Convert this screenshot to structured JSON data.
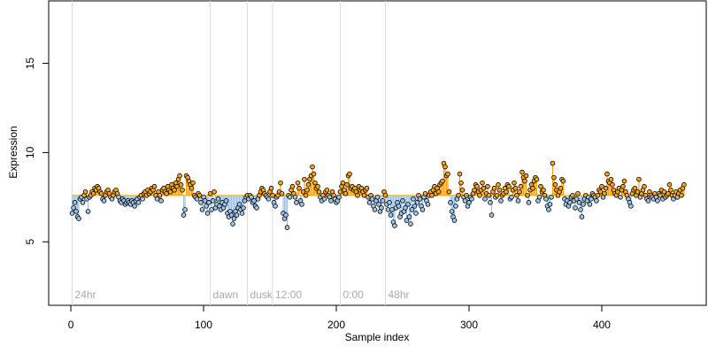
{
  "chart_data": {
    "type": "stem-scatter",
    "xlabel": "Sample index",
    "ylabel": "Expression",
    "xlim": [
      -16.7,
      478.7
    ],
    "ylim": [
      1.44,
      18.5
    ],
    "xticks": [
      0,
      100,
      200,
      300,
      400
    ],
    "yticks": [
      5,
      10,
      15
    ],
    "baseline": 7.6,
    "above_color": "#FFA500",
    "below_color": "#9CC3EA",
    "marker_line_color": "#dddddd",
    "markers": [
      {
        "label": "24hr",
        "x": 1
      },
      {
        "label": "dawn",
        "x": 105
      },
      {
        "label": "dusk",
        "x": 133
      },
      {
        "label": "12:00",
        "x": 152
      },
      {
        "label": "0:00",
        "x": 203
      },
      {
        "label": "48hr",
        "x": 237
      }
    ],
    "x": [
      1,
      2,
      3,
      4,
      5,
      6,
      7,
      8,
      9,
      10,
      11,
      12,
      13,
      14,
      15,
      16,
      17,
      18,
      19,
      20,
      21,
      22,
      23,
      24,
      25,
      26,
      27,
      28,
      29,
      30,
      31,
      32,
      33,
      34,
      35,
      36,
      37,
      38,
      39,
      40,
      41,
      42,
      43,
      44,
      45,
      46,
      47,
      48,
      49,
      50,
      51,
      52,
      53,
      54,
      55,
      56,
      57,
      58,
      59,
      60,
      61,
      62,
      63,
      64,
      65,
      66,
      67,
      68,
      69,
      70,
      71,
      72,
      73,
      74,
      75,
      76,
      77,
      78,
      79,
      80,
      81,
      82,
      83,
      84,
      85,
      86,
      87,
      88,
      89,
      90,
      91,
      92,
      93,
      94,
      95,
      96,
      97,
      98,
      99,
      100,
      101,
      102,
      103,
      104,
      105,
      106,
      107,
      108,
      109,
      110,
      111,
      112,
      113,
      114,
      115,
      116,
      117,
      118,
      119,
      120,
      121,
      122,
      123,
      124,
      125,
      126,
      127,
      128,
      129,
      130,
      131,
      132,
      133,
      134,
      135,
      136,
      137,
      138,
      139,
      140,
      141,
      142,
      143,
      144,
      145,
      146,
      147,
      148,
      149,
      150,
      151,
      152,
      153,
      154,
      155,
      156,
      157,
      158,
      159,
      160,
      161,
      162,
      163,
      164,
      165,
      166,
      167,
      168,
      169,
      170,
      171,
      172,
      173,
      174,
      175,
      176,
      177,
      178,
      179,
      180,
      181,
      182,
      183,
      184,
      185,
      186,
      187,
      188,
      189,
      190,
      191,
      192,
      193,
      194,
      195,
      196,
      197,
      198,
      199,
      200,
      201,
      202,
      203,
      204,
      205,
      206,
      207,
      208,
      209,
      210,
      211,
      212,
      213,
      214,
      215,
      216,
      217,
      218,
      219,
      220,
      221,
      222,
      223,
      224,
      225,
      226,
      227,
      228,
      229,
      230,
      231,
      232,
      233,
      234,
      235,
      236,
      237,
      238,
      239,
      240,
      241,
      242,
      243,
      244,
      245,
      246,
      247,
      248,
      249,
      250,
      251,
      252,
      253,
      254,
      255,
      256,
      257,
      258,
      259,
      260,
      261,
      262,
      263,
      264,
      265,
      266,
      267,
      268,
      269,
      270,
      271,
      272,
      273,
      274,
      275,
      276,
      277,
      278,
      279,
      280,
      281,
      282,
      283,
      284,
      285,
      286,
      287,
      288,
      289,
      290,
      291,
      292,
      293,
      294,
      295,
      296,
      297,
      298,
      299,
      300,
      301,
      302,
      303,
      304,
      305,
      306,
      307,
      308,
      309,
      310,
      311,
      312,
      313,
      314,
      315,
      316,
      317,
      318,
      319,
      320,
      321,
      322,
      323,
      324,
      325,
      326,
      327,
      328,
      329,
      330,
      331,
      332,
      333,
      334,
      335,
      336,
      337,
      338,
      339,
      340,
      341,
      342,
      343,
      344,
      345,
      346,
      347,
      348,
      349,
      350,
      351,
      352,
      353,
      354,
      355,
      356,
      357,
      358,
      359,
      360,
      361,
      362,
      363,
      364,
      365,
      366,
      367,
      368,
      369,
      370,
      371,
      372,
      373,
      374,
      375,
      376,
      377,
      378,
      379,
      380,
      381,
      382,
      383,
      384,
      385,
      386,
      387,
      388,
      389,
      390,
      391,
      392,
      393,
      394,
      395,
      396,
      397,
      398,
      399,
      400,
      401,
      402,
      403,
      404,
      405,
      406,
      407,
      408,
      409,
      410,
      411,
      412,
      413,
      414,
      415,
      416,
      417,
      418,
      419,
      420,
      421,
      422,
      423,
      424,
      425,
      426,
      427,
      428,
      429,
      430,
      431,
      432,
      433,
      434,
      435,
      436,
      437,
      438,
      439,
      440,
      441,
      442,
      443,
      444,
      445,
      446,
      447,
      448,
      449,
      450,
      451,
      452,
      453,
      454,
      455,
      456,
      457,
      458,
      459,
      460,
      461,
      462
    ],
    "values": [
      6.6,
      6.9,
      7.2,
      6.7,
      6.4,
      6.3,
      7.4,
      7.5,
      7.2,
      7.6,
      7.8,
      7.4,
      6.7,
      7.5,
      7.6,
      7.8,
      7.7,
      8.0,
      7.9,
      8.1,
      8.0,
      7.8,
      7.7,
      7.4,
      7.3,
      7.6,
      7.8,
      7.9,
      7.7,
      7.5,
      7.4,
      7.6,
      7.8,
      7.9,
      7.7,
      7.5,
      7.3,
      7.2,
      7.4,
      7.3,
      7.1,
      7.2,
      7.3,
      7.2,
      7.1,
      7.3,
      7.2,
      7.0,
      7.3,
      7.4,
      7.2,
      7.5,
      7.6,
      7.4,
      7.7,
      7.8,
      7.6,
      7.9,
      7.7,
      7.8,
      8.0,
      7.9,
      8.1,
      7.6,
      7.4,
      7.8,
      7.6,
      7.3,
      7.9,
      8.0,
      7.8,
      7.7,
      8.1,
      7.9,
      7.8,
      8.2,
      8.0,
      7.9,
      8.3,
      8.1,
      8.5,
      8.7,
      8.2,
      7.9,
      6.5,
      6.8,
      8.7,
      8.6,
      8.4,
      8.2,
      8.0,
      8.3,
      7.6,
      7.5,
      7.4,
      7.7,
      7.6,
      7.2,
      6.8,
      7.5,
      7.3,
      7.0,
      6.6,
      7.2,
      7.7,
      6.8,
      7.3,
      7.8,
      6.9,
      7.1,
      7.4,
      7.0,
      6.8,
      7.2,
      6.9,
      7.1,
      7.3,
      6.6,
      6.4,
      6.7,
      6.5,
      6.0,
      6.3,
      6.7,
      6.5,
      6.9,
      7.1,
      6.8,
      6.6,
      6.9,
      7.3,
      7.5,
      7.6,
      7.4,
      7.6,
      7.5,
      7.2,
      7.3,
      7.0,
      6.9,
      7.4,
      7.6,
      7.8,
      8.0,
      7.9,
      7.7,
      7.6,
      7.5,
      7.4,
      7.8,
      8.0,
      7.6,
      7.2,
      7.0,
      7.5,
      7.6,
      7.8,
      8.3,
      7.7,
      6.6,
      6.3,
      6.5,
      5.8,
      7.6,
      7.5,
      7.9,
      8.1,
      7.7,
      7.5,
      7.2,
      8.3,
      8.0,
      7.3,
      7.1,
      7.8,
      8.5,
      7.6,
      7.9,
      8.2,
      8.5,
      8.7,
      9.2,
      8.8,
      8.3,
      8.0,
      8.1,
      7.8,
      7.5,
      7.3,
      7.6,
      7.4,
      7.8,
      7.9,
      7.6,
      7.5,
      7.3,
      7.8,
      7.6,
      7.4,
      7.2,
      7.3,
      7.5,
      7.8,
      8.1,
      8.3,
      7.9,
      7.7,
      8.2,
      8.7,
      8.8,
      8.0,
      8.1,
      7.9,
      8.0,
      7.8,
      7.6,
      8.1,
      7.9,
      8.0,
      7.8,
      7.6,
      7.9,
      8.0,
      7.5,
      7.2,
      7.6,
      7.4,
      7.0,
      6.8,
      7.3,
      7.5,
      7.1,
      6.7,
      6.9,
      7.3,
      7.8,
      7.6,
      7.1,
      6.8,
      7.2,
      6.5,
      6.8,
      6.1,
      5.9,
      6.9,
      7.2,
      7.0,
      6.4,
      6.6,
      7.3,
      6.7,
      6.9,
      6.2,
      7.1,
      6.4,
      6.0,
      6.8,
      7.4,
      7.0,
      6.6,
      7.2,
      7.6,
      7.4,
      7.0,
      6.8,
      7.5,
      7.7,
      7.3,
      7.1,
      7.6,
      7.8,
      7.6,
      7.9,
      8.1,
      7.7,
      8.0,
      7.8,
      8.2,
      8.3,
      8.4,
      9.4,
      9.2,
      8.7,
      8.8,
      7.8,
      7.2,
      6.7,
      6.4,
      6.2,
      7.0,
      7.4,
      7.6,
      8.8,
      8.3,
      7.9,
      7.5,
      7.3,
      7.6,
      7.0,
      7.2,
      7.5,
      7.4,
      7.7,
      7.9,
      8.2,
      8.1,
      7.8,
      7.6,
      7.9,
      8.3,
      8.0,
      7.4,
      7.7,
      8.1,
      7.6,
      7.2,
      6.5,
      7.8,
      8.0,
      7.5,
      7.6,
      8.2,
      7.9,
      7.3,
      7.6,
      7.7,
      8.0,
      7.8,
      8.2,
      8.1,
      7.4,
      7.5,
      7.9,
      8.3,
      8.0,
      7.6,
      7.3,
      7.8,
      8.1,
      8.9,
      8.6,
      8.4,
      8.7,
      7.6,
      7.2,
      7.9,
      8.2,
      8.0,
      8.4,
      8.6,
      8.5,
      7.3,
      7.5,
      8.1,
      7.8,
      7.9,
      7.6,
      7.4,
      7.0,
      6.8,
      7.1,
      7.5,
      9.4,
      8.6,
      8.2,
      7.9,
      7.6,
      7.8,
      8.0,
      8.5,
      8.4,
      7.4,
      7.1,
      7.3,
      7.0,
      7.2,
      7.5,
      7.6,
      7.3,
      6.9,
      7.4,
      7.7,
      7.2,
      6.8,
      6.4,
      7.1,
      7.4,
      7.6,
      7.3,
      7.5,
      7.1,
      7.4,
      7.7,
      7.6,
      7.5,
      7.3,
      7.6,
      7.9,
      7.8,
      8.1,
      7.5,
      7.7,
      8.0,
      8.8,
      8.4,
      8.3,
      8.5,
      8.2,
      7.9,
      7.7,
      7.6,
      7.8,
      8.0,
      7.5,
      7.9,
      8.1,
      8.4,
      7.8,
      7.6,
      7.4,
      7.2,
      7.0,
      7.7,
      7.9,
      8.0,
      7.6,
      7.8,
      8.5,
      7.5,
      7.7,
      7.9,
      8.1,
      7.6,
      7.4,
      7.3,
      7.8,
      7.6,
      7.5,
      7.4,
      7.7,
      7.5,
      7.3,
      7.7,
      7.6,
      7.9,
      7.4,
      7.8,
      7.5,
      7.6,
      7.7,
      8.2,
      7.9,
      7.6,
      7.4,
      7.6,
      7.8,
      7.5,
      7.7,
      7.9,
      7.6,
      8.0,
      8.2
    ]
  }
}
